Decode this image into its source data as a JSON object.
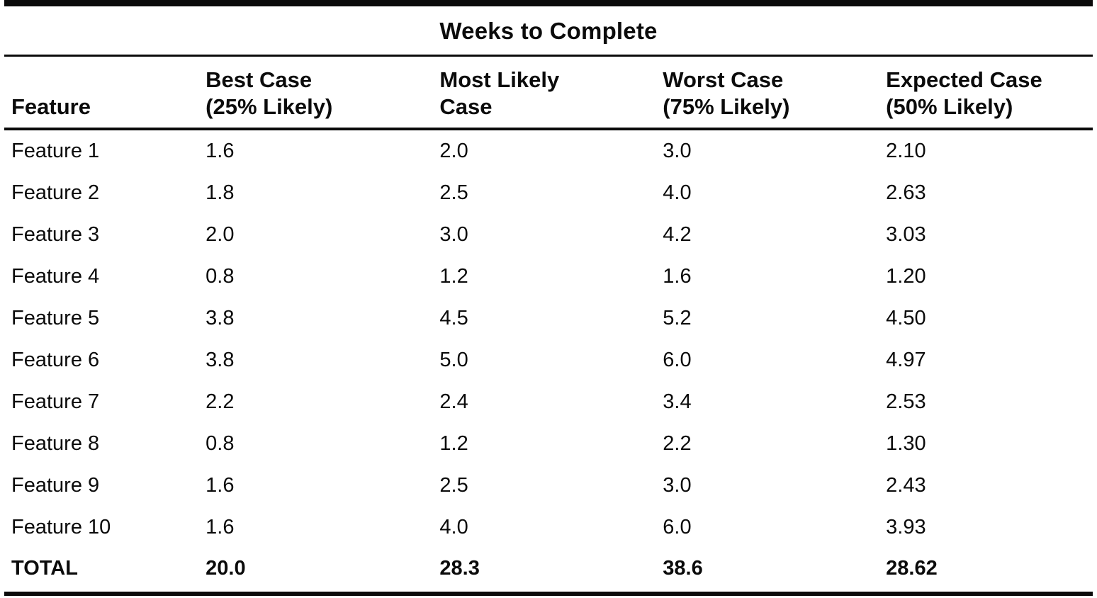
{
  "page": {
    "background_color": "#ffffff",
    "ink_color": "#0b0b0b"
  },
  "table": {
    "title": "Weeks to Complete",
    "columns": [
      {
        "label": "Feature",
        "sub": ""
      },
      {
        "label": "Best Case",
        "sub": "(25% Likely)"
      },
      {
        "label": "Most Likely",
        "sub": "Case"
      },
      {
        "label": "Worst Case",
        "sub": "(75% Likely)"
      },
      {
        "label": "Expected Case",
        "sub": "(50% Likely)"
      }
    ],
    "rows": [
      {
        "feature": "Feature 1",
        "best": "1.6",
        "most_likely": "2.0",
        "worst": "3.0",
        "expected": "2.10"
      },
      {
        "feature": "Feature 2",
        "best": "1.8",
        "most_likely": "2.5",
        "worst": "4.0",
        "expected": "2.63"
      },
      {
        "feature": "Feature 3",
        "best": "2.0",
        "most_likely": "3.0",
        "worst": "4.2",
        "expected": "3.03"
      },
      {
        "feature": "Feature 4",
        "best": "0.8",
        "most_likely": "1.2",
        "worst": "1.6",
        "expected": "1.20"
      },
      {
        "feature": "Feature 5",
        "best": "3.8",
        "most_likely": "4.5",
        "worst": "5.2",
        "expected": "4.50"
      },
      {
        "feature": "Feature 6",
        "best": "3.8",
        "most_likely": "5.0",
        "worst": "6.0",
        "expected": "4.97"
      },
      {
        "feature": "Feature 7",
        "best": "2.2",
        "most_likely": "2.4",
        "worst": "3.4",
        "expected": "2.53"
      },
      {
        "feature": "Feature 8",
        "best": "0.8",
        "most_likely": "1.2",
        "worst": "2.2",
        "expected": "1.30"
      },
      {
        "feature": "Feature 9",
        "best": "1.6",
        "most_likely": "2.5",
        "worst": "3.0",
        "expected": "2.43"
      },
      {
        "feature": "Feature 10",
        "best": "1.6",
        "most_likely": "4.0",
        "worst": "6.0",
        "expected": "3.93"
      }
    ],
    "total": {
      "feature": "TOTAL",
      "best": "20.0",
      "most_likely": "28.3",
      "worst": "38.6",
      "expected": "28.62"
    }
  }
}
